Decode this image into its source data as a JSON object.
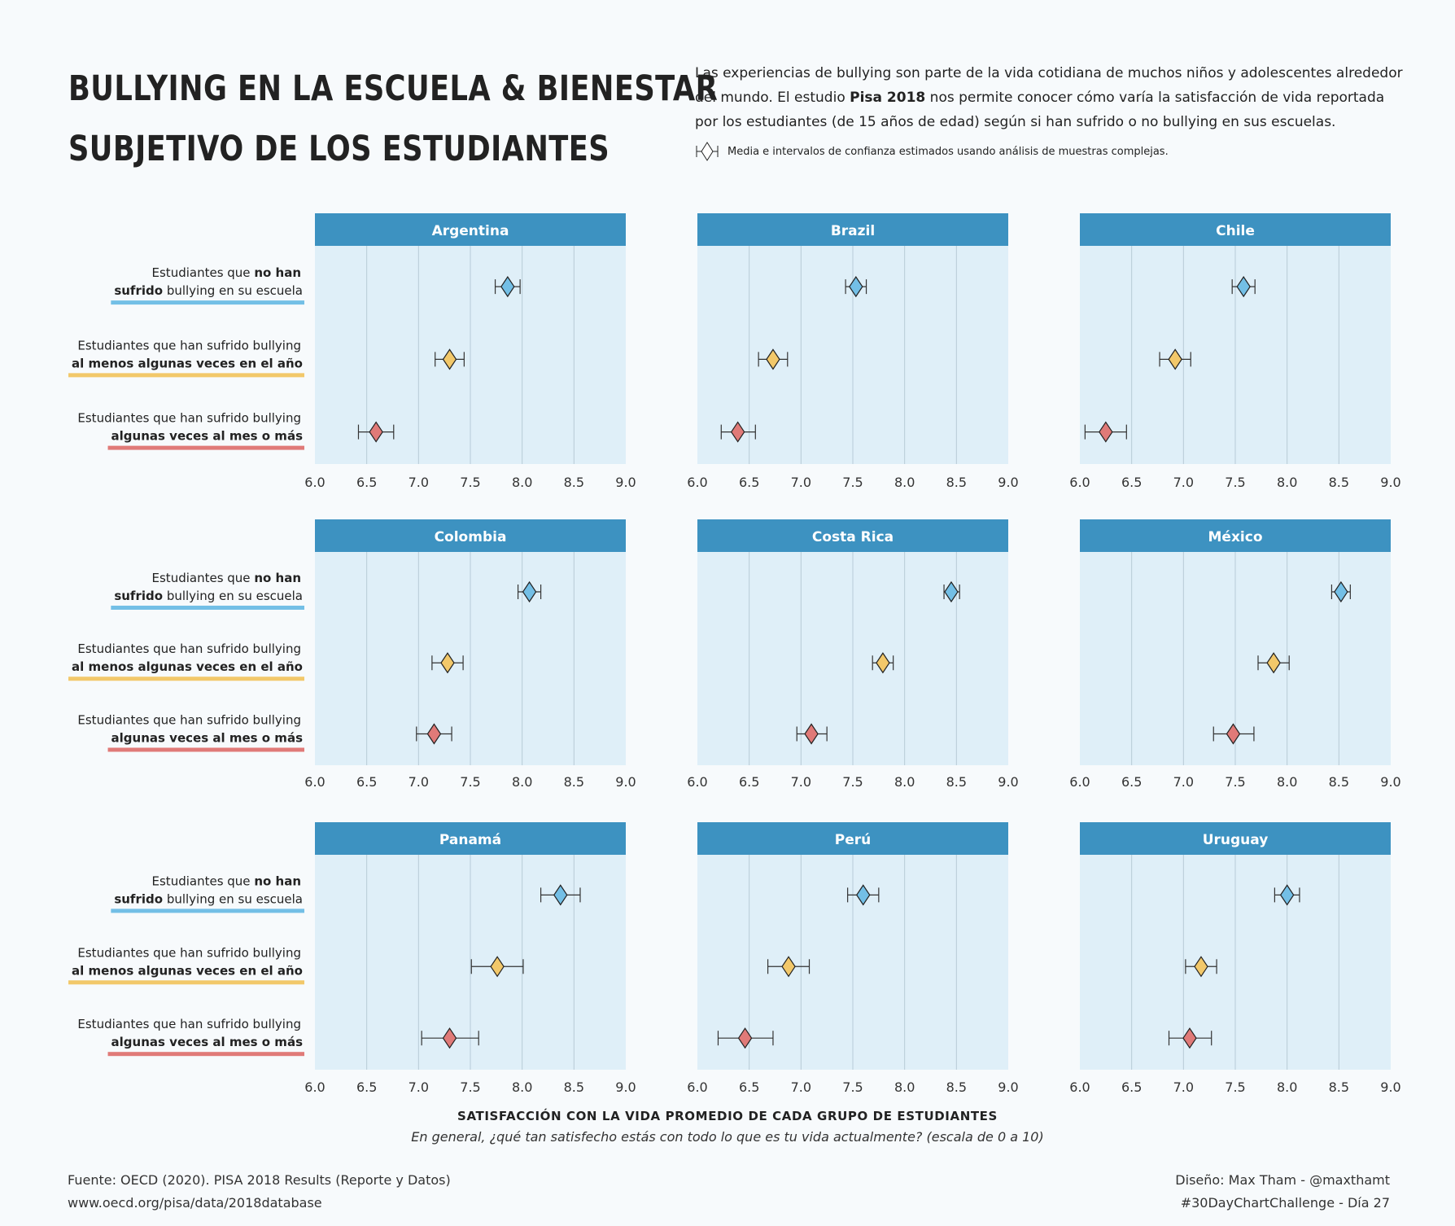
{
  "title": {
    "line1": "BULLYING EN LA ESCUELA & BIENESTAR",
    "line2": "SUBJETIVO DE LOS ESTUDIANTES"
  },
  "intro": {
    "part1": "Las experiencias de bullying son parte de la vida cotidiana de muchos niños y adolescentes alrededor del mundo. El estudio ",
    "bold": "Pisa 2018",
    "part2": " nos permite conocer cómo varía la satisfacción de vida reportada por los estudiantes (de 15 años de edad) según si han sufrido o no bullying en sus escuelas."
  },
  "legend_note": "Media e intervalos de confianza estimados usando análisis de muestras complejas.",
  "footer": {
    "source_line1": "Fuente: OECD (2020). PISA 2018 Results (Reporte y Datos)",
    "source_line2": "www.oecd.org/pisa/data/2018database",
    "credit_line1": "Diseño: Max Tham - @maxthamt",
    "credit_line2": "#30DayChartChallenge - Día 27"
  },
  "colors": {
    "background": "#f7fafc",
    "panel_bg": "#dfeff8",
    "strip": "#3d92c1",
    "grid": "#b7cbd7",
    "no_bullying": "#73bfe6",
    "some_year": "#f2c86a",
    "monthly": "#e07a78"
  },
  "chart_data": {
    "type": "dot-errorbar",
    "xlabel": "SATISFACCIÓN CON LA VIDA PROMEDIO DE CADA GRUPO DE ESTUDIANTES",
    "xsublabel": "En general, ¿qué tan satisfecho estás con todo lo que es tu vida actualmente? (escala de 0 a 10)",
    "xlim": [
      6.0,
      9.0
    ],
    "xticks": [
      "6.0",
      "6.5",
      "7.0",
      "7.5",
      "8.0",
      "8.5",
      "9.0"
    ],
    "grid": true,
    "groups": [
      {
        "key": "no",
        "color": "#73bfe6",
        "label_line1_normal": "Estudiantes que ",
        "label_line1_bold": "no han",
        "label_line2_bold": "sufrido",
        "label_line2_normal": " bullying en su escuela"
      },
      {
        "key": "year",
        "color": "#f2c86a",
        "label_line1_normal": "Estudiantes que han sufrido bullying",
        "label_line1_bold": "",
        "label_line2_bold": "al menos algunas veces en el año",
        "label_line2_normal": ""
      },
      {
        "key": "month",
        "color": "#e07a78",
        "label_line1_normal": "Estudiantes que han sufrido bullying",
        "label_line1_bold": "",
        "label_line2_bold": "algunas veces al mes o más",
        "label_line2_normal": ""
      }
    ],
    "panels": [
      {
        "country": "Argentina",
        "values": [
          {
            "mean": 7.86,
            "lo": 7.74,
            "hi": 7.98
          },
          {
            "mean": 7.3,
            "lo": 7.16,
            "hi": 7.44
          },
          {
            "mean": 6.59,
            "lo": 6.42,
            "hi": 6.76
          }
        ]
      },
      {
        "country": "Brazil",
        "values": [
          {
            "mean": 7.53,
            "lo": 7.43,
            "hi": 7.63
          },
          {
            "mean": 6.73,
            "lo": 6.59,
            "hi": 6.87
          },
          {
            "mean": 6.39,
            "lo": 6.23,
            "hi": 6.56
          }
        ]
      },
      {
        "country": "Chile",
        "values": [
          {
            "mean": 7.58,
            "lo": 7.47,
            "hi": 7.69
          },
          {
            "mean": 6.92,
            "lo": 6.77,
            "hi": 7.07
          },
          {
            "mean": 6.25,
            "lo": 6.05,
            "hi": 6.45
          }
        ]
      },
      {
        "country": "Colombia",
        "values": [
          {
            "mean": 8.07,
            "lo": 7.96,
            "hi": 8.18
          },
          {
            "mean": 7.28,
            "lo": 7.13,
            "hi": 7.43
          },
          {
            "mean": 7.15,
            "lo": 6.98,
            "hi": 7.32
          }
        ]
      },
      {
        "country": "Costa Rica",
        "values": [
          {
            "mean": 8.45,
            "lo": 8.38,
            "hi": 8.53
          },
          {
            "mean": 7.79,
            "lo": 7.69,
            "hi": 7.89
          },
          {
            "mean": 7.1,
            "lo": 6.96,
            "hi": 7.25
          }
        ]
      },
      {
        "country": "México",
        "values": [
          {
            "mean": 8.52,
            "lo": 8.43,
            "hi": 8.61
          },
          {
            "mean": 7.87,
            "lo": 7.72,
            "hi": 8.02
          },
          {
            "mean": 7.48,
            "lo": 7.29,
            "hi": 7.68
          }
        ]
      },
      {
        "country": "Panamá",
        "values": [
          {
            "mean": 8.37,
            "lo": 8.18,
            "hi": 8.56
          },
          {
            "mean": 7.76,
            "lo": 7.51,
            "hi": 8.01
          },
          {
            "mean": 7.3,
            "lo": 7.03,
            "hi": 7.58
          }
        ]
      },
      {
        "country": "Perú",
        "values": [
          {
            "mean": 7.6,
            "lo": 7.45,
            "hi": 7.75
          },
          {
            "mean": 6.88,
            "lo": 6.68,
            "hi": 7.08
          },
          {
            "mean": 6.46,
            "lo": 6.2,
            "hi": 6.73
          }
        ]
      },
      {
        "country": "Uruguay",
        "values": [
          {
            "mean": 8.0,
            "lo": 7.88,
            "hi": 8.12
          },
          {
            "mean": 7.17,
            "lo": 7.02,
            "hi": 7.32
          },
          {
            "mean": 7.06,
            "lo": 6.86,
            "hi": 7.27
          }
        ]
      }
    ]
  }
}
